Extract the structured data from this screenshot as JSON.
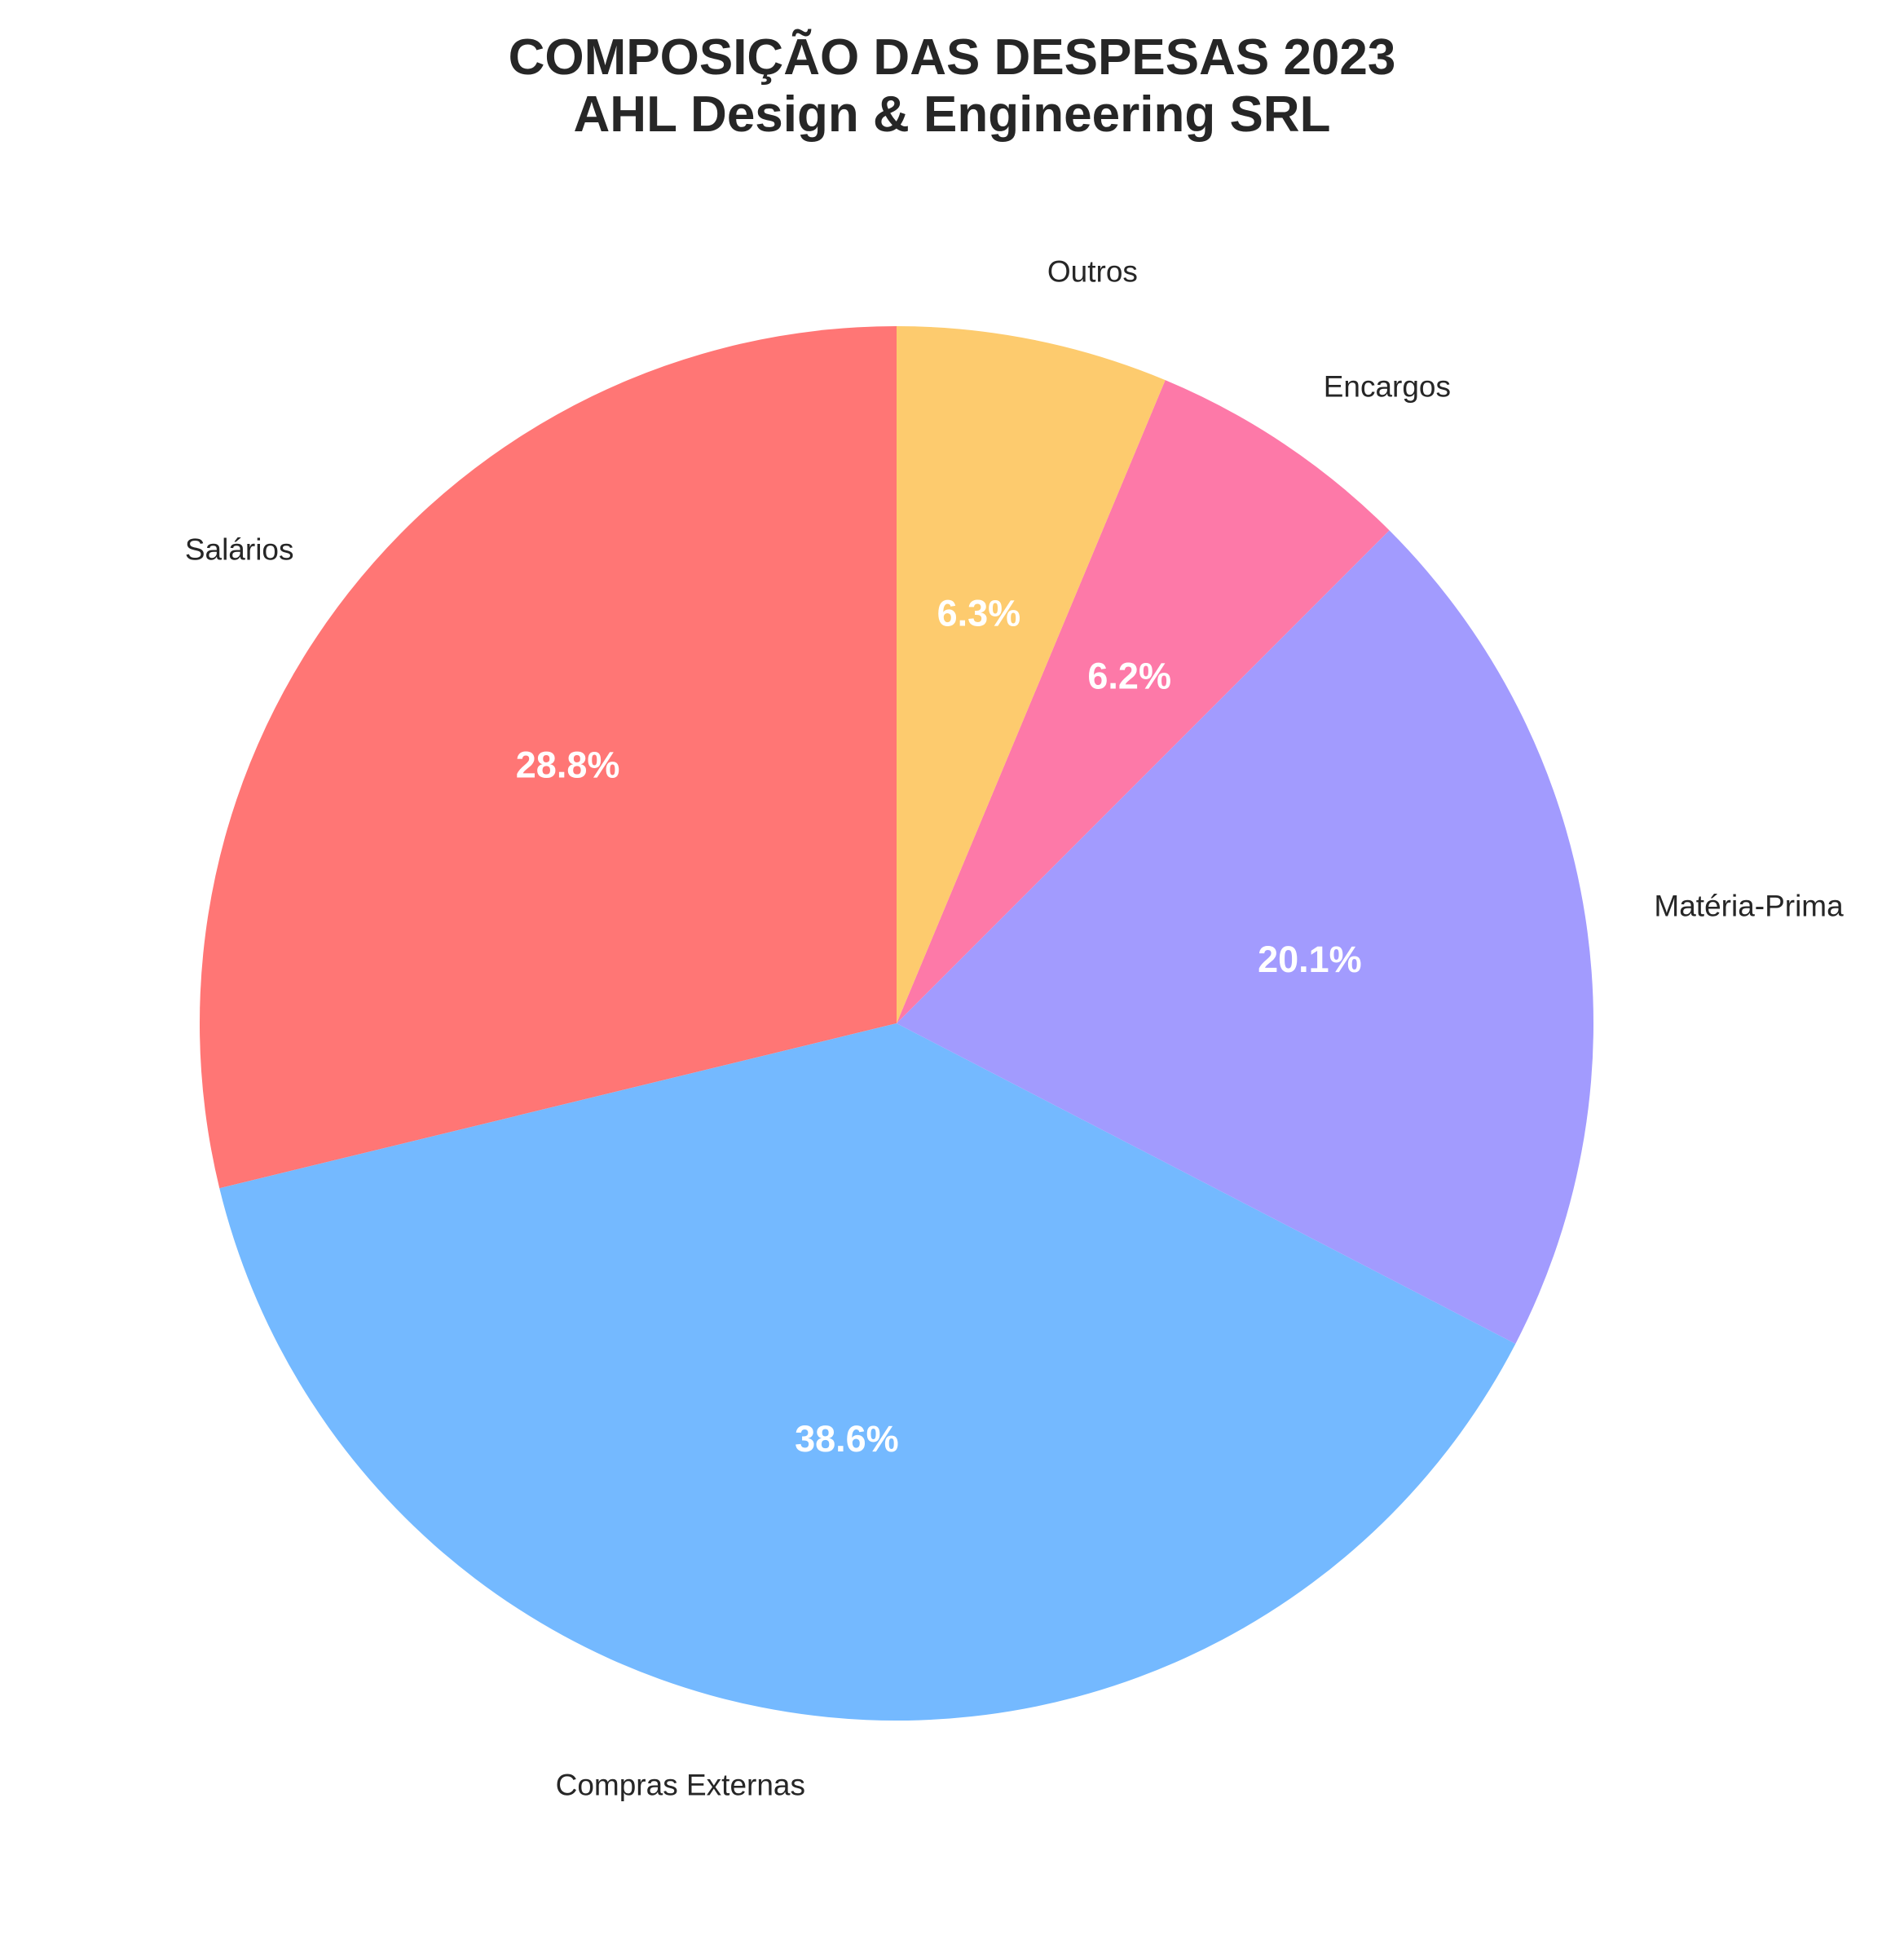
{
  "chart_data": {
    "type": "pie",
    "title": "COMPOSIÇÃO DAS DESPESAS 2023",
    "subtitle": "AHL Design & Engineering SRL",
    "start_angle_deg": 90,
    "direction": "counterclockwise",
    "slices": [
      {
        "label": "Salários",
        "value": 28.8,
        "pct_label": "28.8%",
        "color": "#FF7675"
      },
      {
        "label": "Compras Externas",
        "value": 38.6,
        "pct_label": "38.6%",
        "color": "#74B9FF"
      },
      {
        "label": "Matéria-Prima",
        "value": 20.1,
        "pct_label": "20.1%",
        "color": "#A29BFE"
      },
      {
        "label": "Encargos",
        "value": 6.2,
        "pct_label": "6.2%",
        "color": "#FD79A8"
      },
      {
        "label": "Outros",
        "value": 6.3,
        "pct_label": "6.3%",
        "color": "#FDCB6E"
      }
    ]
  }
}
